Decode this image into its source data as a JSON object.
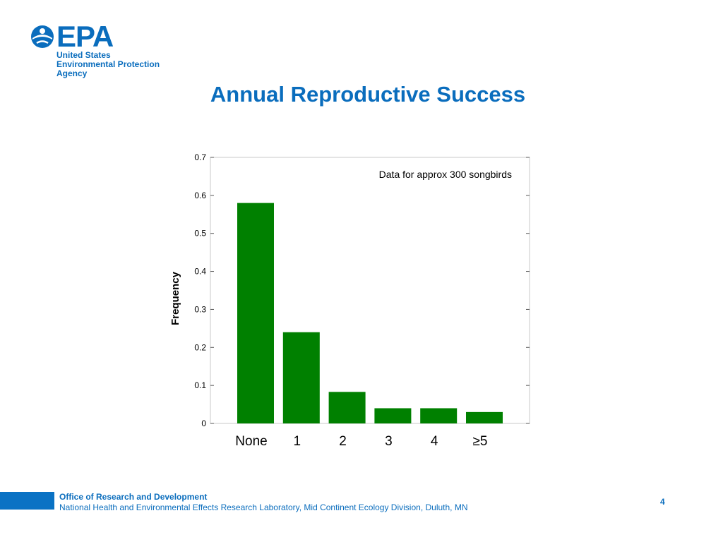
{
  "logo": {
    "icon": "epa-flower-icon",
    "word": "EPA",
    "lines": [
      "United States",
      "Environmental Protection",
      "Agency"
    ]
  },
  "title": "Annual Reproductive Success",
  "chart_data": {
    "type": "bar",
    "categories": [
      "None",
      "1",
      "2",
      "3",
      "4",
      "≥5"
    ],
    "values": [
      0.58,
      0.24,
      0.083,
      0.04,
      0.04,
      0.03
    ],
    "ylabel": "Frequency",
    "xlabel": "",
    "ylim": [
      0,
      0.7
    ],
    "yticks": [
      "0",
      "0.1",
      "0.2",
      "0.3",
      "0.4",
      "0.5",
      "0.6",
      "0.7"
    ],
    "annotation": "Data for approx 300 songbirds",
    "bar_color": "#008000",
    "grid": false
  },
  "footer": {
    "org": "Office of Research and Development",
    "lab": "National Health and Environmental Effects Research Laboratory, Mid Continent Ecology Division, Duluth, MN",
    "page": "4",
    "accent_color": "#0a72c4"
  }
}
